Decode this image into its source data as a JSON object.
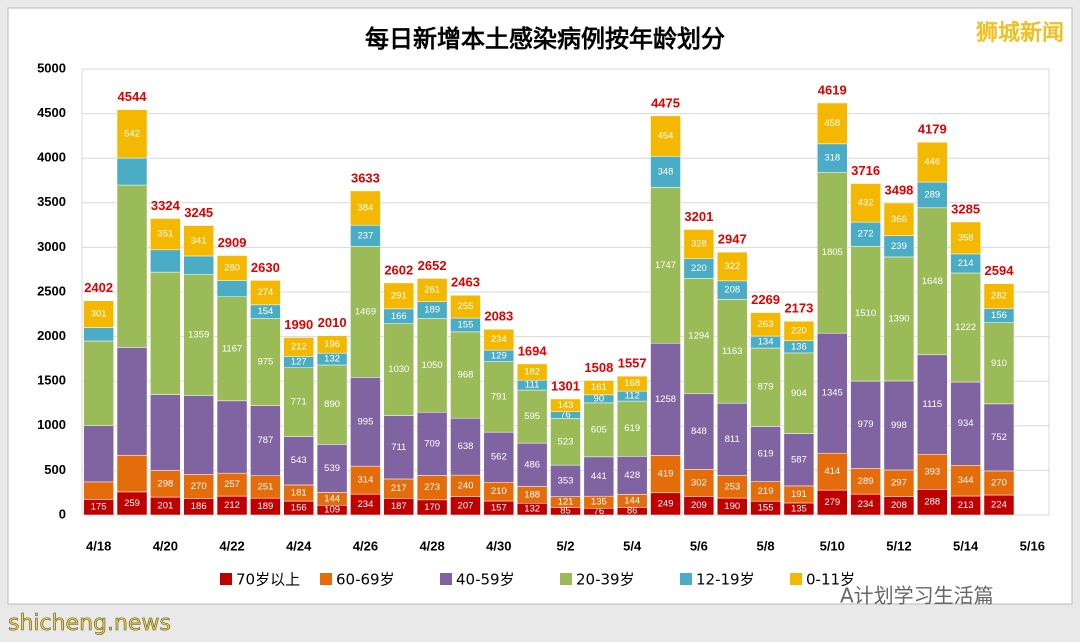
{
  "chart_data": {
    "type": "stacked_bar",
    "title": "每日新增本土感染病例按年龄划分",
    "categories": [
      "4/18",
      null,
      "4/20",
      null,
      "4/22",
      null,
      "4/24",
      null,
      "4/26",
      null,
      "4/28",
      null,
      "4/30",
      null,
      "5/2",
      null,
      "5/4",
      null,
      "5/6",
      null,
      "5/8",
      null,
      "5/10",
      null,
      "5/12",
      null,
      "5/14",
      null,
      "5/16"
    ],
    "series": [
      {
        "name": "70岁以上",
        "color": "#c00000",
        "values": [
          175,
          259,
          201,
          186,
          212,
          189,
          156,
          109,
          234,
          187,
          170,
          207,
          157,
          132,
          85,
          76,
          86,
          249,
          209,
          190,
          155,
          135,
          279,
          234,
          208,
          288,
          213,
          224,
          null
        ],
        "value_labels": [
          "175",
          "259",
          "201",
          "186",
          "212",
          "189",
          "156",
          "109",
          "234",
          "187",
          "170",
          "207",
          "157",
          "132",
          "85",
          "76",
          "86",
          "249",
          "209",
          "190",
          "155",
          "135",
          "279",
          "234",
          "208",
          "288",
          "213",
          "224",
          null
        ]
      },
      {
        "name": "60-69岁",
        "color": "#e46c0a",
        "values": [
          196,
          410,
          298,
          270,
          257,
          251,
          181,
          144,
          314,
          217,
          273,
          240,
          210,
          188,
          121,
          135,
          144,
          419,
          302,
          253,
          219,
          191,
          414,
          289,
          297,
          393,
          344,
          270,
          null
        ],
        "value_labels": [
          null,
          null,
          "298",
          "270",
          "257",
          "251",
          "181",
          "144",
          "314",
          "217",
          "273",
          "240",
          "210",
          "188",
          "121",
          "135",
          "144",
          "419",
          "302",
          "253",
          "219",
          "191",
          "414",
          "289",
          "297",
          "393",
          "344",
          "270",
          null
        ]
      },
      {
        "name": "40-59岁",
        "color": "#8064a2",
        "values": [
          630,
          1210,
          850,
          884,
          811,
          787,
          543,
          539,
          995,
          711,
          709,
          638,
          562,
          486,
          353,
          441,
          428,
          1258,
          848,
          811,
          619,
          587,
          1345,
          979,
          998,
          1115,
          934,
          752,
          null
        ],
        "value_labels": [
          null,
          null,
          null,
          null,
          null,
          "787",
          "543",
          "539",
          "995",
          "711",
          "709",
          "638",
          "562",
          "486",
          "353",
          "441",
          "428",
          "1258",
          "848",
          "811",
          "619",
          "587",
          "1345",
          "979",
          "998",
          "1115",
          "934",
          "752",
          null
        ]
      },
      {
        "name": "20-39岁",
        "color": "#9bbb59",
        "values": [
          950,
          1820,
          1374,
          1359,
          1167,
          975,
          771,
          890,
          1469,
          1030,
          1050,
          968,
          791,
          595,
          523,
          605,
          619,
          1747,
          1294,
          1163,
          879,
          904,
          1805,
          1510,
          1390,
          1648,
          1222,
          910,
          null
        ],
        "value_labels": [
          null,
          null,
          null,
          "1359",
          "1167",
          "975",
          "771",
          "890",
          "1469",
          "1030",
          "1050",
          "968",
          "791",
          "595",
          "523",
          "605",
          "619",
          "1747",
          "1294",
          "1163",
          "879",
          "904",
          "1805",
          "1510",
          "1390",
          "1648",
          "1222",
          "910",
          null
        ]
      },
      {
        "name": "12-19岁",
        "color": "#4bacc6",
        "values": [
          150,
          303,
          250,
          205,
          182,
          154,
          127,
          132,
          237,
          166,
          189,
          155,
          129,
          111,
          76,
          90,
          112,
          348,
          220,
          208,
          134,
          136,
          318,
          272,
          239,
          289,
          214,
          156,
          null
        ],
        "value_labels": [
          null,
          null,
          null,
          null,
          null,
          "154",
          "127",
          "132",
          "237",
          "166",
          "189",
          "155",
          "129",
          "111",
          "76",
          "90",
          "112",
          "348",
          "220",
          "208",
          "134",
          "136",
          "318",
          "272",
          "239",
          "289",
          "214",
          "156",
          null
        ]
      },
      {
        "name": "0-11岁",
        "color": "#f5b800",
        "values": [
          301,
          542,
          351,
          341,
          280,
          274,
          212,
          196,
          384,
          291,
          261,
          255,
          234,
          182,
          143,
          161,
          168,
          454,
          328,
          322,
          263,
          220,
          458,
          432,
          366,
          446,
          358,
          282,
          null
        ],
        "value_labels": [
          "301",
          "542",
          "351",
          "341",
          "280",
          "274",
          "212",
          "196",
          "384",
          "291",
          "261",
          "255",
          "234",
          "182",
          "143",
          "161",
          "168",
          "454",
          "328",
          "322",
          "263",
          "220",
          "458",
          "432",
          "366",
          "446",
          "358",
          "282",
          null
        ]
      }
    ],
    "totals": [
      2402,
      4544,
      3324,
      3245,
      2909,
      2630,
      1990,
      2010,
      3633,
      2602,
      2652,
      2463,
      2083,
      1694,
      1301,
      1508,
      1557,
      4475,
      3201,
      2947,
      2269,
      2173,
      4619,
      3716,
      3498,
      4179,
      3285,
      2594,
      null
    ],
    "ylim": [
      0,
      5000
    ],
    "yticks": [
      0,
      500,
      1000,
      1500,
      2000,
      2500,
      3000,
      3500,
      4000,
      4500,
      5000
    ],
    "grid": true,
    "legend": "bottom"
  },
  "watermarks": {
    "top_right": "狮城新闻",
    "bottom_left": "shicheng.news",
    "bottom_right": "A计划学习生活篇"
  }
}
